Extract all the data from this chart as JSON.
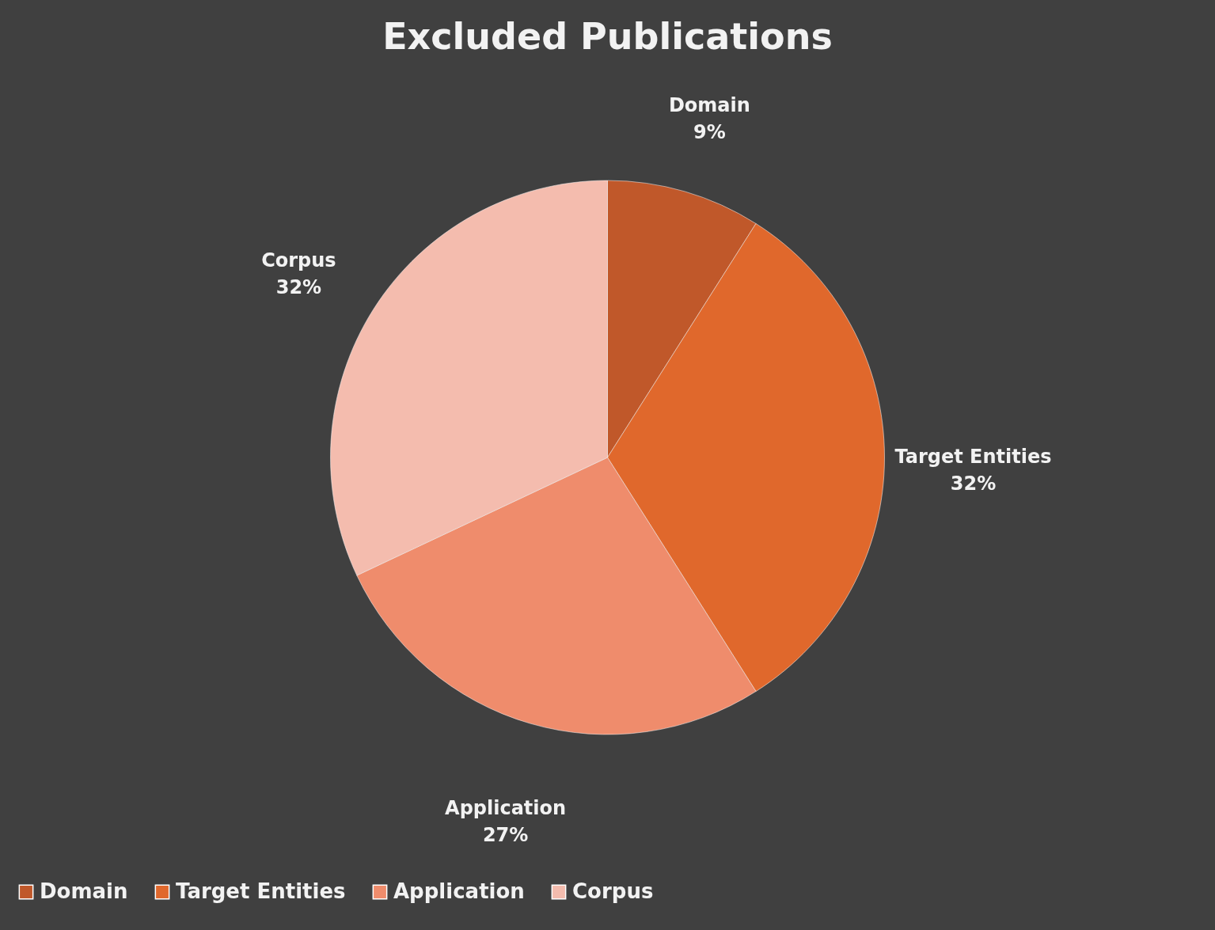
{
  "chart_data": {
    "type": "pie",
    "title": "Excluded Publications",
    "categories": [
      "Domain",
      "Target Entities",
      "Application",
      "Corpus"
    ],
    "values": [
      9,
      32,
      27,
      32
    ],
    "value_labels": [
      "9%",
      "32%",
      "27%",
      "32%"
    ],
    "colors": [
      "#c0582a",
      "#e0682c",
      "#ef8c6c",
      "#f4bcae"
    ],
    "legend": "bottom"
  }
}
